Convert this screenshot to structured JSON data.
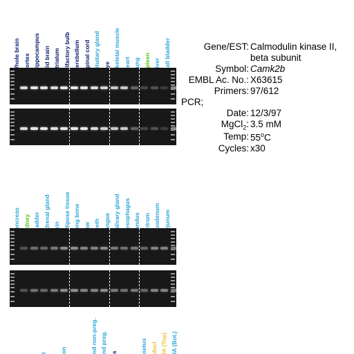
{
  "colors": {
    "navy": "#0a1a6e",
    "cyan": "#2aa6d8",
    "green": "#5fbf1a",
    "yellow": "#e8c43a",
    "gel_bg": "#181818",
    "band": "#e6e6e6",
    "faint_band": "#6a6a6a"
  },
  "panel1": {
    "lanes": [
      {
        "label": "Whole brain",
        "color": "navy",
        "intensity": 0.9
      },
      {
        "label": "Cortex",
        "color": "navy",
        "intensity": 0.95
      },
      {
        "label": "Hippocampus",
        "color": "navy",
        "intensity": 0.95
      },
      {
        "label": "Mid brain",
        "color": "navy",
        "intensity": 0.9
      },
      {
        "label": "Striatum",
        "color": "navy",
        "intensity": 0.95
      },
      {
        "label": "Olfactory bulb",
        "color": "navy",
        "intensity": 0.95
      },
      {
        "label": "Cerebellum",
        "color": "navy",
        "intensity": 0.95
      },
      {
        "label": "Spinal cord",
        "color": "navy",
        "intensity": 0.9
      },
      {
        "label": "Pituitary gland",
        "color": "cyan",
        "intensity": 0.85
      },
      {
        "label": "Eye",
        "color": "navy",
        "intensity": 0.8
      },
      {
        "label": "Skeletal muscle",
        "color": "cyan",
        "intensity": 0.8
      },
      {
        "label": "Heart",
        "color": "cyan",
        "intensity": 0.3
      },
      {
        "label": "Lung",
        "color": "cyan",
        "intensity": 0.15
      },
      {
        "label": "Spleen",
        "color": "green",
        "intensity": 0.2
      },
      {
        "label": "Liver",
        "color": "cyan",
        "intensity": 0.1
      },
      {
        "label": "Gall bladder",
        "color": "cyan",
        "intensity": 0.5
      }
    ]
  },
  "panel2": {
    "lanes": [
      {
        "label": "Pancreas",
        "color": "cyan",
        "intensity": 0.2
      },
      {
        "label": "Kidney",
        "color": "green",
        "intensity": 0.35
      },
      {
        "label": "Bladder",
        "color": "cyan",
        "intensity": 0.3
      },
      {
        "label": "Adrenal gland",
        "color": "cyan",
        "intensity": 0.4
      },
      {
        "label": "Skin",
        "color": "cyan",
        "intensity": 0.5
      },
      {
        "label": "Adipose tissue",
        "color": "cyan",
        "intensity": 0.5
      },
      {
        "label": "Long bone",
        "color": "cyan",
        "intensity": 0.45
      },
      {
        "label": "Paw",
        "color": "cyan",
        "intensity": 0.45
      },
      {
        "label": "Teeth",
        "color": "cyan",
        "intensity": 0.5
      },
      {
        "label": "Tongue",
        "color": "cyan",
        "intensity": 0.4
      },
      {
        "label": "Salivary gland",
        "color": "cyan",
        "intensity": 0.35
      },
      {
        "label": "Oesophagus",
        "color": "cyan",
        "intensity": 0.4
      },
      {
        "label": "Fundus",
        "color": "cyan",
        "intensity": 0.3
      },
      {
        "label": "Antrum",
        "color": "cyan",
        "intensity": 0.45
      },
      {
        "label": "Duodenum",
        "color": "cyan",
        "intensity": 0.45
      },
      {
        "label": "Jejunum",
        "color": "cyan",
        "intensity": 0.4
      }
    ]
  },
  "panel3": {
    "labels": [
      {
        "text": "l",
        "color": "cyan"
      },
      {
        "text": "on",
        "color": "cyan"
      },
      {
        "text": "nd non-preg.",
        "color": "cyan"
      },
      {
        "text": "nd preg.",
        "color": "cyan"
      },
      {
        "text": "s",
        "color": "navy"
      },
      {
        "text": "oetus",
        "color": "cyan"
      },
      {
        "text": "duct",
        "color": "yellow"
      },
      {
        "text": "IA (Top)",
        "color": "yellow"
      },
      {
        "text": "IA (Bot.)",
        "color": "cyan"
      }
    ]
  },
  "info": {
    "gene_key": "Gene/EST:",
    "gene_value": "Calmodulin kinase II,",
    "gene_value2": "beta subunit",
    "symbol_key": "Symbol:",
    "symbol_value": "Camk2b",
    "embl_key": "EMBL Ac. No.:",
    "embl_value": "X63615",
    "primers_key": "Primers:",
    "primers_value": "97/612",
    "pcr_label": "PCR;",
    "date_key": "Date:",
    "date_value": "12/3/97",
    "mgcl_key_main": "MgCl",
    "mgcl_key_sub": "2",
    "mgcl_key_colon": ":",
    "mgcl_value": "3.5 mM",
    "temp_key": "Temp:",
    "temp_value_num": "55",
    "temp_value_sup": "o",
    "temp_value_unit": "C",
    "cycles_key": "Cycles:",
    "cycles_value": "x30"
  }
}
